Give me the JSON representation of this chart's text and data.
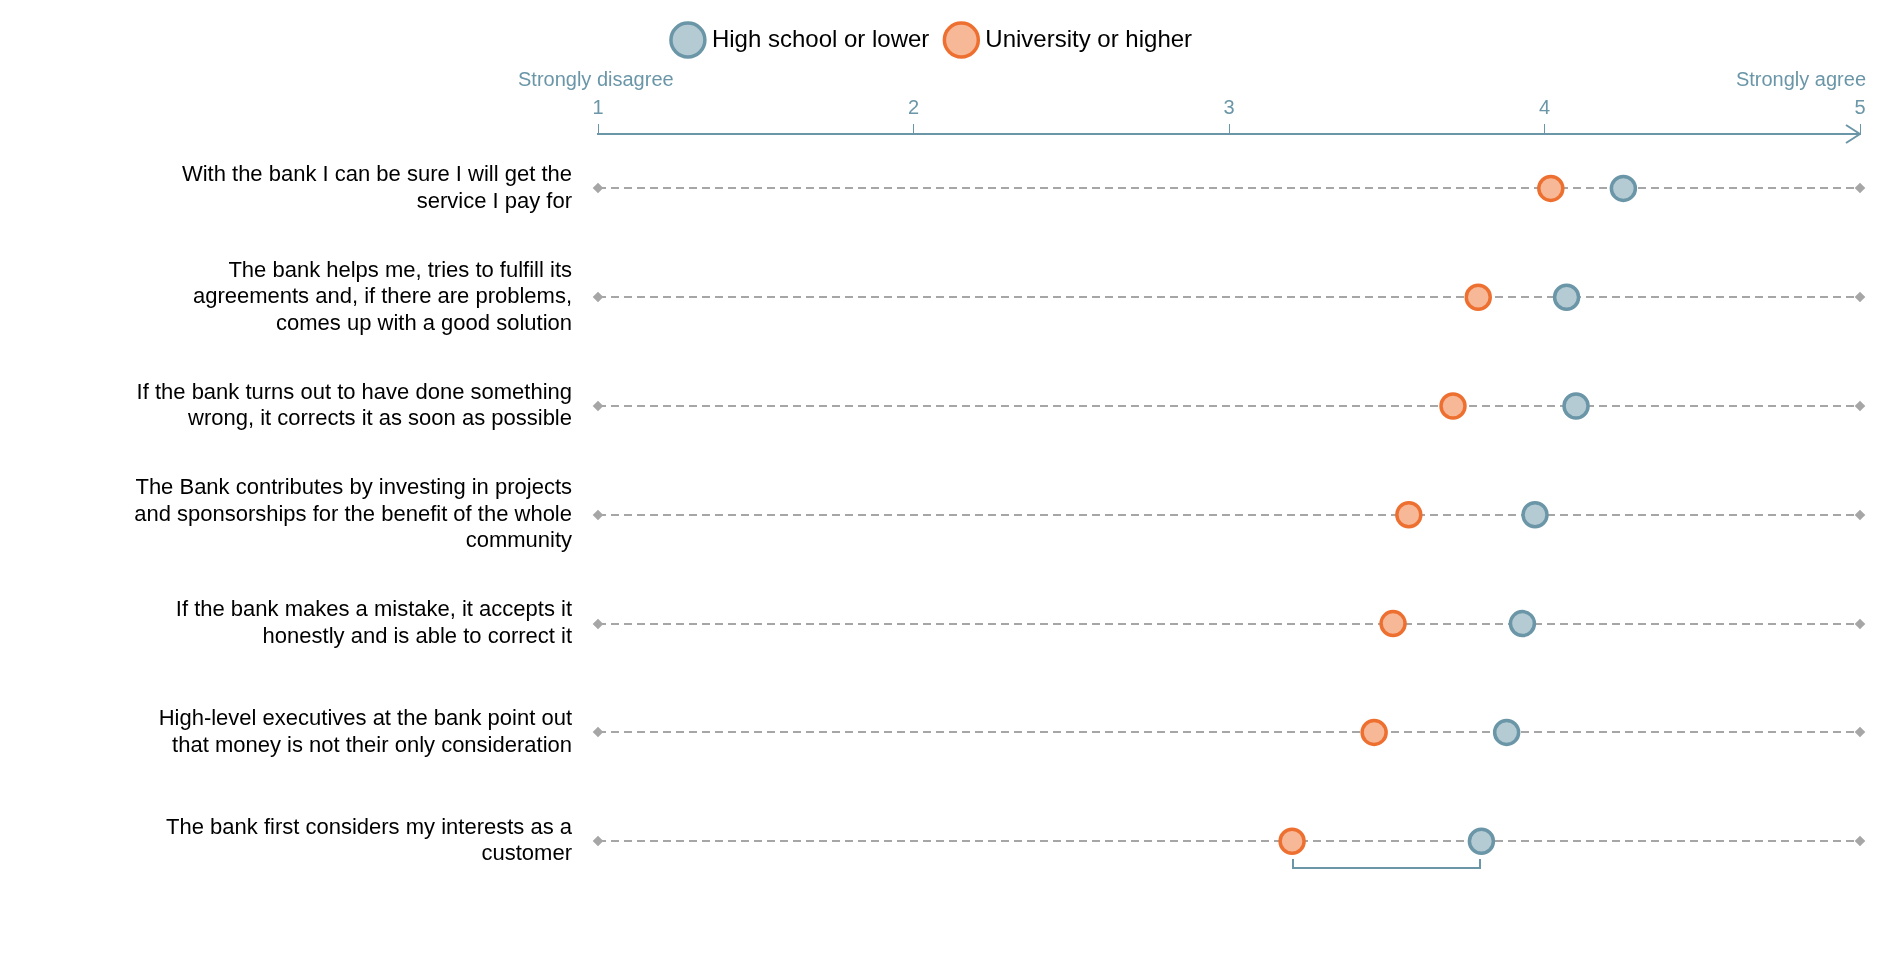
{
  "chart_data": {
    "type": "scatter",
    "orientation": "horizontal",
    "categories": [
      "With the bank I can be sure I will get the service I pay for",
      "The bank helps me, tries to fulfill its agreements and, if there are problems, comes up with a good solution",
      "If the bank turns out to have done something wrong, it corrects it as soon as possible",
      "The Bank contributes by investing in projects and sponsorships for the benefit of the whole community",
      "If the bank makes a mistake, it accepts it honestly and is able to correct it",
      "High-level executives at the bank point out that money is not their only consideration",
      "The bank first considers my interests as a customer"
    ],
    "series": [
      {
        "name": "High school or lower",
        "color": "#6a96a8",
        "values": [
          4.25,
          4.07,
          4.1,
          3.97,
          3.93,
          3.88,
          3.8
        ]
      },
      {
        "name": "University or higher",
        "color": "#ee7031",
        "values": [
          4.02,
          3.79,
          3.71,
          3.57,
          3.52,
          3.46,
          3.2
        ]
      }
    ],
    "xlim": [
      1,
      5
    ],
    "xticks": [
      1,
      2,
      3,
      4,
      5
    ],
    "annotations": [
      "Strongly disagree",
      "Strongly agree"
    ],
    "grid": "y",
    "legend": "top",
    "marker": "circle"
  }
}
